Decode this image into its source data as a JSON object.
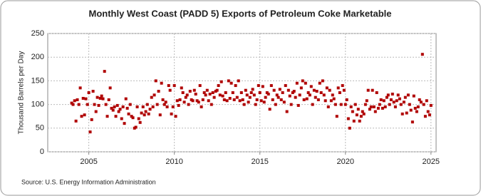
{
  "chart_data": {
    "type": "scatter",
    "title": "Monthly West Coast (PADD 5) Exports of Petroleum Coke Marketable",
    "y_label": "Thousand Barrels per Day",
    "source": "Source: U.S. Energy Information Administration",
    "color": "#b00000",
    "grid": true,
    "xlim": [
      2002.6,
      2025.3
    ],
    "xticks": [
      2005,
      2010,
      2015,
      2020,
      2025
    ],
    "ylim": [
      0,
      250
    ],
    "yticks": [
      0,
      50,
      100,
      150,
      200,
      250
    ],
    "x": [
      2004,
      2004.08,
      2004.17,
      2004.25,
      2004.33,
      2004.42,
      2004.5,
      2004.58,
      2004.67,
      2004.75,
      2004.83,
      2004.92,
      2005,
      2005.08,
      2005.17,
      2005.25,
      2005.33,
      2005.42,
      2005.5,
      2005.58,
      2005.67,
      2005.75,
      2005.83,
      2005.92,
      2006,
      2006.08,
      2006.17,
      2006.25,
      2006.33,
      2006.42,
      2006.5,
      2006.58,
      2006.67,
      2006.75,
      2006.83,
      2006.92,
      2007,
      2007.08,
      2007.17,
      2007.25,
      2007.33,
      2007.42,
      2007.5,
      2007.58,
      2007.67,
      2007.75,
      2007.83,
      2007.92,
      2008,
      2008.08,
      2008.17,
      2008.25,
      2008.33,
      2008.42,
      2008.5,
      2008.58,
      2008.67,
      2008.75,
      2008.83,
      2008.92,
      2009,
      2009.08,
      2009.17,
      2009.25,
      2009.33,
      2009.42,
      2009.5,
      2009.58,
      2009.67,
      2009.75,
      2009.83,
      2009.92,
      2010,
      2010.08,
      2010.17,
      2010.25,
      2010.33,
      2010.42,
      2010.5,
      2010.58,
      2010.67,
      2010.75,
      2010.83,
      2010.92,
      2011,
      2011.08,
      2011.17,
      2011.25,
      2011.33,
      2011.42,
      2011.5,
      2011.58,
      2011.67,
      2011.75,
      2011.83,
      2011.92,
      2012,
      2012.08,
      2012.17,
      2012.25,
      2012.33,
      2012.42,
      2012.5,
      2012.58,
      2012.67,
      2012.75,
      2012.83,
      2012.92,
      2013,
      2013.08,
      2013.17,
      2013.25,
      2013.33,
      2013.42,
      2013.5,
      2013.58,
      2013.67,
      2013.75,
      2013.83,
      2013.92,
      2014,
      2014.08,
      2014.17,
      2014.25,
      2014.33,
      2014.42,
      2014.5,
      2014.58,
      2014.67,
      2014.75,
      2014.83,
      2014.92,
      2015,
      2015.08,
      2015.17,
      2015.25,
      2015.33,
      2015.42,
      2015.5,
      2015.58,
      2015.67,
      2015.75,
      2015.83,
      2015.92,
      2016,
      2016.08,
      2016.17,
      2016.25,
      2016.33,
      2016.42,
      2016.5,
      2016.58,
      2016.67,
      2016.75,
      2016.83,
      2016.92,
      2017,
      2017.08,
      2017.17,
      2017.25,
      2017.33,
      2017.42,
      2017.5,
      2017.58,
      2017.67,
      2017.75,
      2017.83,
      2017.92,
      2018,
      2018.08,
      2018.17,
      2018.25,
      2018.33,
      2018.42,
      2018.5,
      2018.58,
      2018.67,
      2018.75,
      2018.83,
      2018.92,
      2019,
      2019.08,
      2019.17,
      2019.25,
      2019.33,
      2019.42,
      2019.5,
      2019.58,
      2019.67,
      2019.75,
      2019.83,
      2019.92,
      2020,
      2020.08,
      2020.17,
      2020.25,
      2020.33,
      2020.42,
      2020.5,
      2020.58,
      2020.67,
      2020.75,
      2020.83,
      2020.92,
      2021,
      2021.08,
      2021.17,
      2021.25,
      2021.33,
      2021.42,
      2021.5,
      2021.58,
      2021.67,
      2021.75,
      2021.83,
      2021.92,
      2022,
      2022.08,
      2022.17,
      2022.25,
      2022.33,
      2022.42,
      2022.5,
      2022.58,
      2022.67,
      2022.75,
      2022.83,
      2022.92,
      2023,
      2023.08,
      2023.17,
      2023.25,
      2023.33,
      2023.42,
      2023.5,
      2023.58,
      2023.67,
      2023.75,
      2023.83,
      2023.92,
      2024,
      2024.08,
      2024.17,
      2024.25,
      2024.33,
      2024.42,
      2024.5,
      2024.58,
      2024.67,
      2024.75,
      2024.83,
      2024.92,
      2025
    ],
    "values": [
      103,
      100,
      108,
      65,
      110,
      100,
      135,
      75,
      113,
      78,
      112,
      100,
      125,
      42,
      68,
      128,
      100,
      85,
      115,
      98,
      113,
      118,
      112,
      170,
      100,
      75,
      110,
      135,
      92,
      88,
      95,
      75,
      98,
      85,
      90,
      70,
      95,
      60,
      112,
      92,
      80,
      100,
      75,
      72,
      50,
      52,
      95,
      70,
      62,
      82,
      95,
      78,
      85,
      100,
      80,
      90,
      115,
      95,
      120,
      150,
      100,
      128,
      78,
      145,
      110,
      100,
      105,
      95,
      140,
      130,
      80,
      95,
      140,
      75,
      108,
      98,
      110,
      135,
      125,
      105,
      115,
      120,
      100,
      128,
      110,
      108,
      130,
      122,
      108,
      105,
      140,
      95,
      110,
      125,
      120,
      130,
      108,
      122,
      100,
      125,
      115,
      128,
      130,
      140,
      120,
      148,
      118,
      110,
      125,
      108,
      150,
      113,
      145,
      125,
      110,
      140,
      115,
      150,
      108,
      125,
      110,
      100,
      130,
      120,
      105,
      115,
      125,
      132,
      120,
      100,
      110,
      140,
      125,
      108,
      138,
      105,
      115,
      125,
      122,
      90,
      140,
      110,
      130,
      100,
      120,
      115,
      132,
      110,
      125,
      105,
      140,
      85,
      130,
      118,
      100,
      125,
      128,
      115,
      145,
      98,
      120,
      135,
      150,
      110,
      145,
      112,
      125,
      120,
      138,
      100,
      130,
      115,
      128,
      110,
      145,
      125,
      150,
      120,
      108,
      135,
      95,
      130,
      108,
      120,
      112,
      100,
      75,
      135,
      125,
      100,
      140,
      130,
      100,
      110,
      70,
      50,
      95,
      85,
      65,
      100,
      78,
      90,
      65,
      75,
      85,
      80,
      100,
      108,
      130,
      90,
      95,
      130,
      95,
      85,
      125,
      92,
      100,
      110,
      92,
      108,
      95,
      115,
      120,
      100,
      110,
      122,
      105,
      95,
      108,
      120,
      112,
      100,
      80,
      105,
      115,
      82,
      120,
      100,
      88,
      63,
      118,
      92,
      85,
      95,
      110,
      105,
      206,
      100,
      75,
      108,
      85,
      78,
      98
    ]
  }
}
